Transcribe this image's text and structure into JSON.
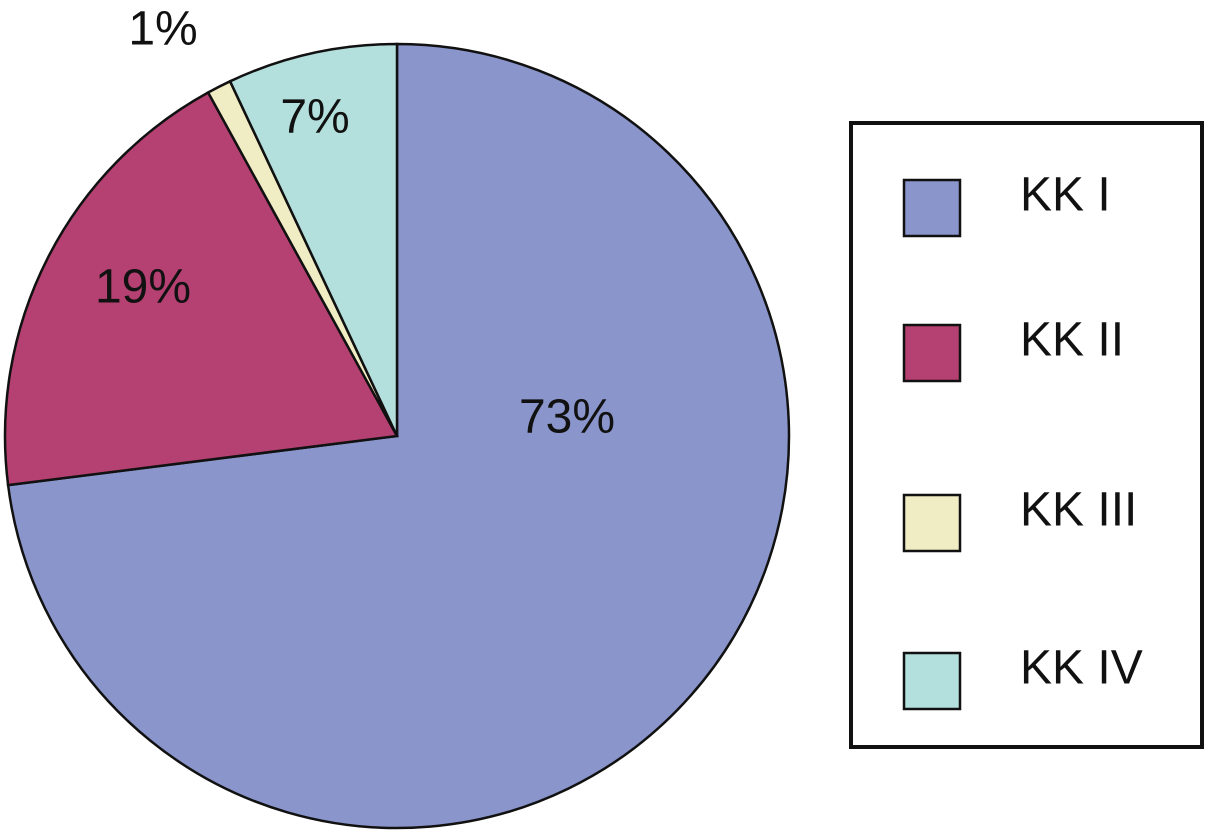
{
  "chart_data": {
    "type": "pie",
    "categories": [
      "KK I",
      "KK II",
      "KK III",
      "KK IV"
    ],
    "values": [
      73,
      19,
      1,
      7
    ],
    "value_labels": [
      "73%",
      "19%",
      "1%",
      "7%"
    ],
    "colors": [
      "#8a96cb",
      "#b44171",
      "#f0ecc4",
      "#b3e0dc"
    ],
    "legend": "right"
  }
}
